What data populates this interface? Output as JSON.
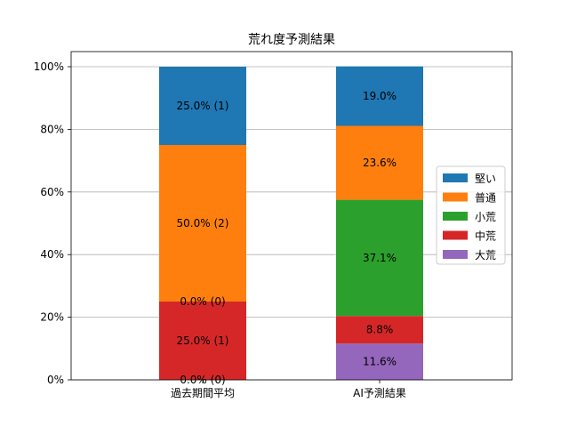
{
  "chart_data": {
    "type": "bar",
    "stacked": true,
    "title": "荒れ度予測結果",
    "xlabel": "",
    "ylabel": "",
    "ylim": [
      0,
      100
    ],
    "y_ticks": [
      "0%",
      "20%",
      "40%",
      "60%",
      "80%",
      "100%"
    ],
    "grid": "horizontal",
    "legend_position": "right",
    "categories": [
      "過去期間平均",
      "AI予測結果"
    ],
    "series": [
      {
        "name": "大荒",
        "color": "#9467bd",
        "values": [
          0.0,
          11.6
        ],
        "labels": [
          "0.0% (0)",
          "11.6%"
        ]
      },
      {
        "name": "中荒",
        "color": "#d62728",
        "values": [
          25.0,
          8.8
        ],
        "labels": [
          "25.0% (1)",
          "8.8%"
        ]
      },
      {
        "name": "小荒",
        "color": "#2ca02c",
        "values": [
          0.0,
          37.1
        ],
        "labels": [
          "0.0% (0)",
          "37.1%"
        ]
      },
      {
        "name": "普通",
        "color": "#ff7f0e",
        "values": [
          50.0,
          23.6
        ],
        "labels": [
          "50.0% (2)",
          "23.6%"
        ]
      },
      {
        "name": "堅い",
        "color": "#1f77b4",
        "values": [
          25.0,
          19.0
        ],
        "labels": [
          "25.0% (1)",
          "19.0%"
        ]
      }
    ],
    "legend_order": [
      "堅い",
      "普通",
      "小荒",
      "中荒",
      "大荒"
    ]
  }
}
